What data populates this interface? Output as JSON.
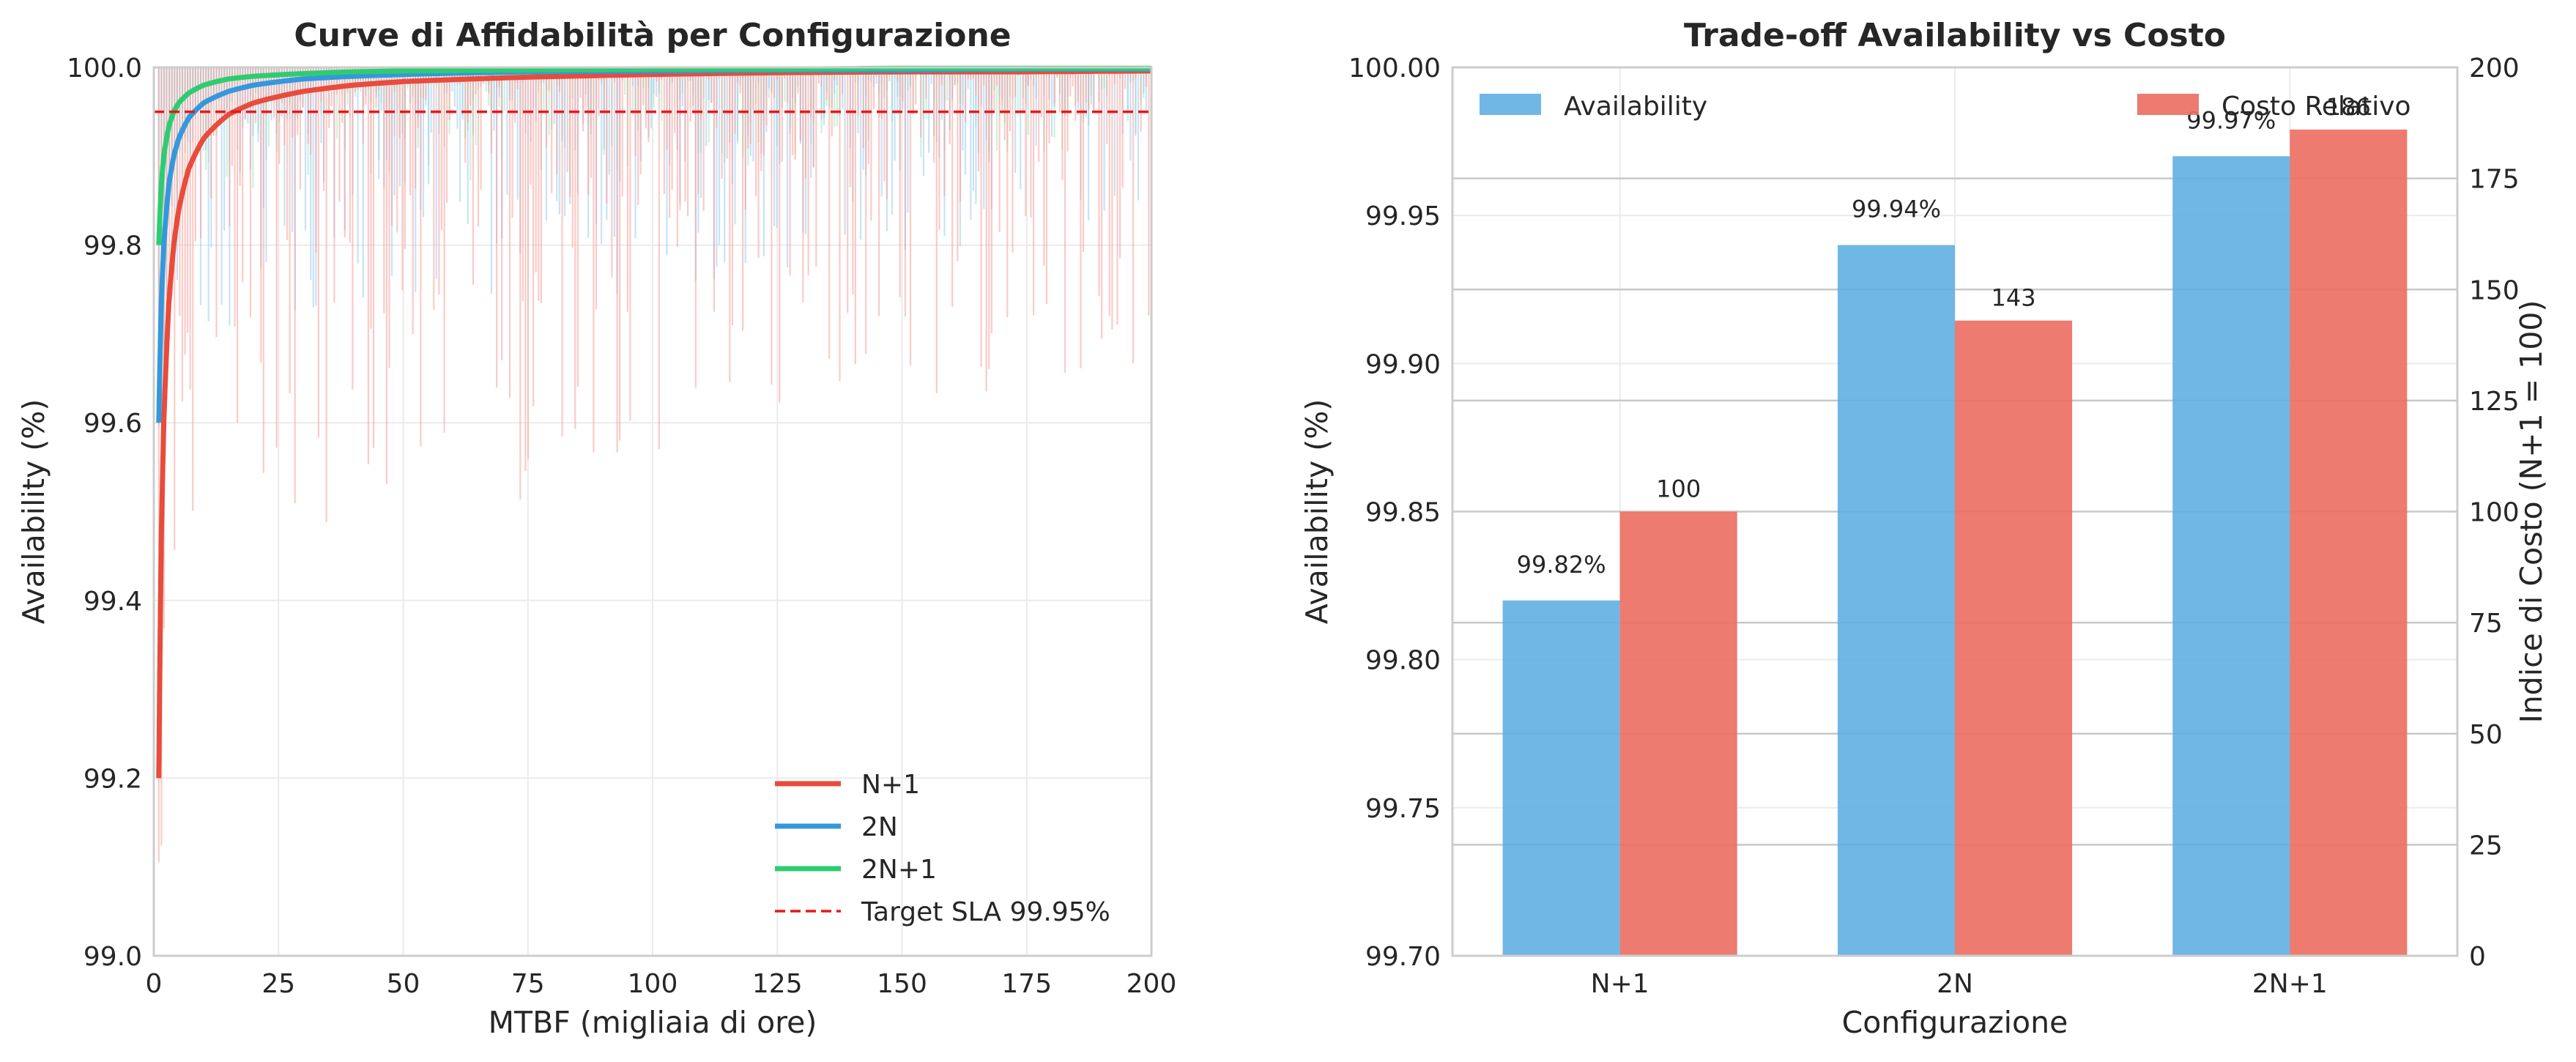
{
  "chart_data": [
    {
      "type": "line",
      "title": "Curve di Affidabilità per Configurazione",
      "xlabel": "MTBF (migliaia di ore)",
      "ylabel": "Availability (%)",
      "xlim": [
        0,
        200
      ],
      "ylim": [
        99.0,
        100.0
      ],
      "xticks": [
        "0",
        "25",
        "50",
        "75",
        "100",
        "125",
        "150",
        "175",
        "200"
      ],
      "yticks": [
        "99.0",
        "99.2",
        "99.4",
        "99.6",
        "99.8",
        "100.0"
      ],
      "grid": true,
      "legend_position": "lower-right",
      "series": [
        {
          "name": "N+1",
          "color": "#e74c3c",
          "x": [
            1,
            1.5,
            2,
            3,
            4,
            5,
            7,
            10,
            15,
            20,
            30,
            40,
            50,
            75,
            100,
            125,
            150,
            175,
            200
          ],
          "y": [
            99.2,
            99.467,
            99.6,
            99.733,
            99.8,
            99.84,
            99.886,
            99.92,
            99.947,
            99.96,
            99.973,
            99.98,
            99.984,
            99.989,
            99.992,
            99.994,
            99.995,
            99.995,
            99.996
          ]
        },
        {
          "name": "2N",
          "color": "#3498db",
          "x": [
            1,
            1.5,
            2,
            3,
            4,
            5,
            7,
            10,
            15,
            20,
            30,
            40,
            50,
            75,
            100,
            125,
            150,
            175,
            200
          ],
          "y": [
            99.6,
            99.733,
            99.8,
            99.867,
            99.9,
            99.92,
            99.943,
            99.96,
            99.973,
            99.98,
            99.987,
            99.99,
            99.992,
            99.995,
            99.996,
            99.997,
            99.997,
            99.998,
            99.998
          ]
        },
        {
          "name": "2N+1",
          "color": "#2ecc71",
          "x": [
            1,
            1.5,
            2,
            3,
            4,
            5,
            7,
            10,
            15,
            20,
            30,
            40,
            50,
            75,
            100,
            125,
            150,
            175,
            200
          ],
          "y": [
            99.8,
            99.867,
            99.9,
            99.933,
            99.95,
            99.96,
            99.971,
            99.98,
            99.987,
            99.99,
            99.993,
            99.995,
            99.996,
            99.997,
            99.998,
            99.998,
            99.999,
            99.999,
            99.999
          ]
        }
      ],
      "reference_line": {
        "name": "Target SLA 99.95%",
        "y": 99.95,
        "color": "#e41a1c",
        "style": "dashed"
      },
      "noise_bands": {
        "description_for_render": "faint simulated fluctuation lines behind each curve",
        "N+1": {
          "color": "#f5a09a",
          "max_dip": 0.55
        },
        "2N": {
          "color": "#9ccbee",
          "max_dip": 0.3
        },
        "2N+1": {
          "color": "#a6e3be",
          "max_dip": 0.14
        }
      }
    },
    {
      "type": "bar",
      "title": "Trade-off Availability vs Costo",
      "xlabel": "Configurazione",
      "ylabel": "Availability (%)",
      "ylabel_right": "Indice di Costo (N+1 = 100)",
      "categories": [
        "N+1",
        "2N",
        "2N+1"
      ],
      "ylim": [
        99.7,
        100.0
      ],
      "ylim_right": [
        0,
        200
      ],
      "yticks": [
        "99.70",
        "99.75",
        "99.80",
        "99.85",
        "99.90",
        "99.95",
        "100.00"
      ],
      "yticks_right": [
        "0",
        "25",
        "50",
        "75",
        "100",
        "125",
        "150",
        "175",
        "200"
      ],
      "grid": true,
      "legend_position": "top",
      "series": [
        {
          "name": "Availability",
          "axis": "left",
          "color": "#5dade2",
          "values": [
            99.82,
            99.94,
            99.97
          ],
          "labels": [
            "99.82%",
            "99.94%",
            "99.97%"
          ]
        },
        {
          "name": "Costo Relativo",
          "axis": "right",
          "color": "#ec7063",
          "values": [
            100,
            143,
            186
          ],
          "labels": [
            "100",
            "143",
            "186"
          ]
        }
      ],
      "left_axis_color": "#2e8bd0",
      "right_axis_color": "#e74c3c"
    }
  ]
}
